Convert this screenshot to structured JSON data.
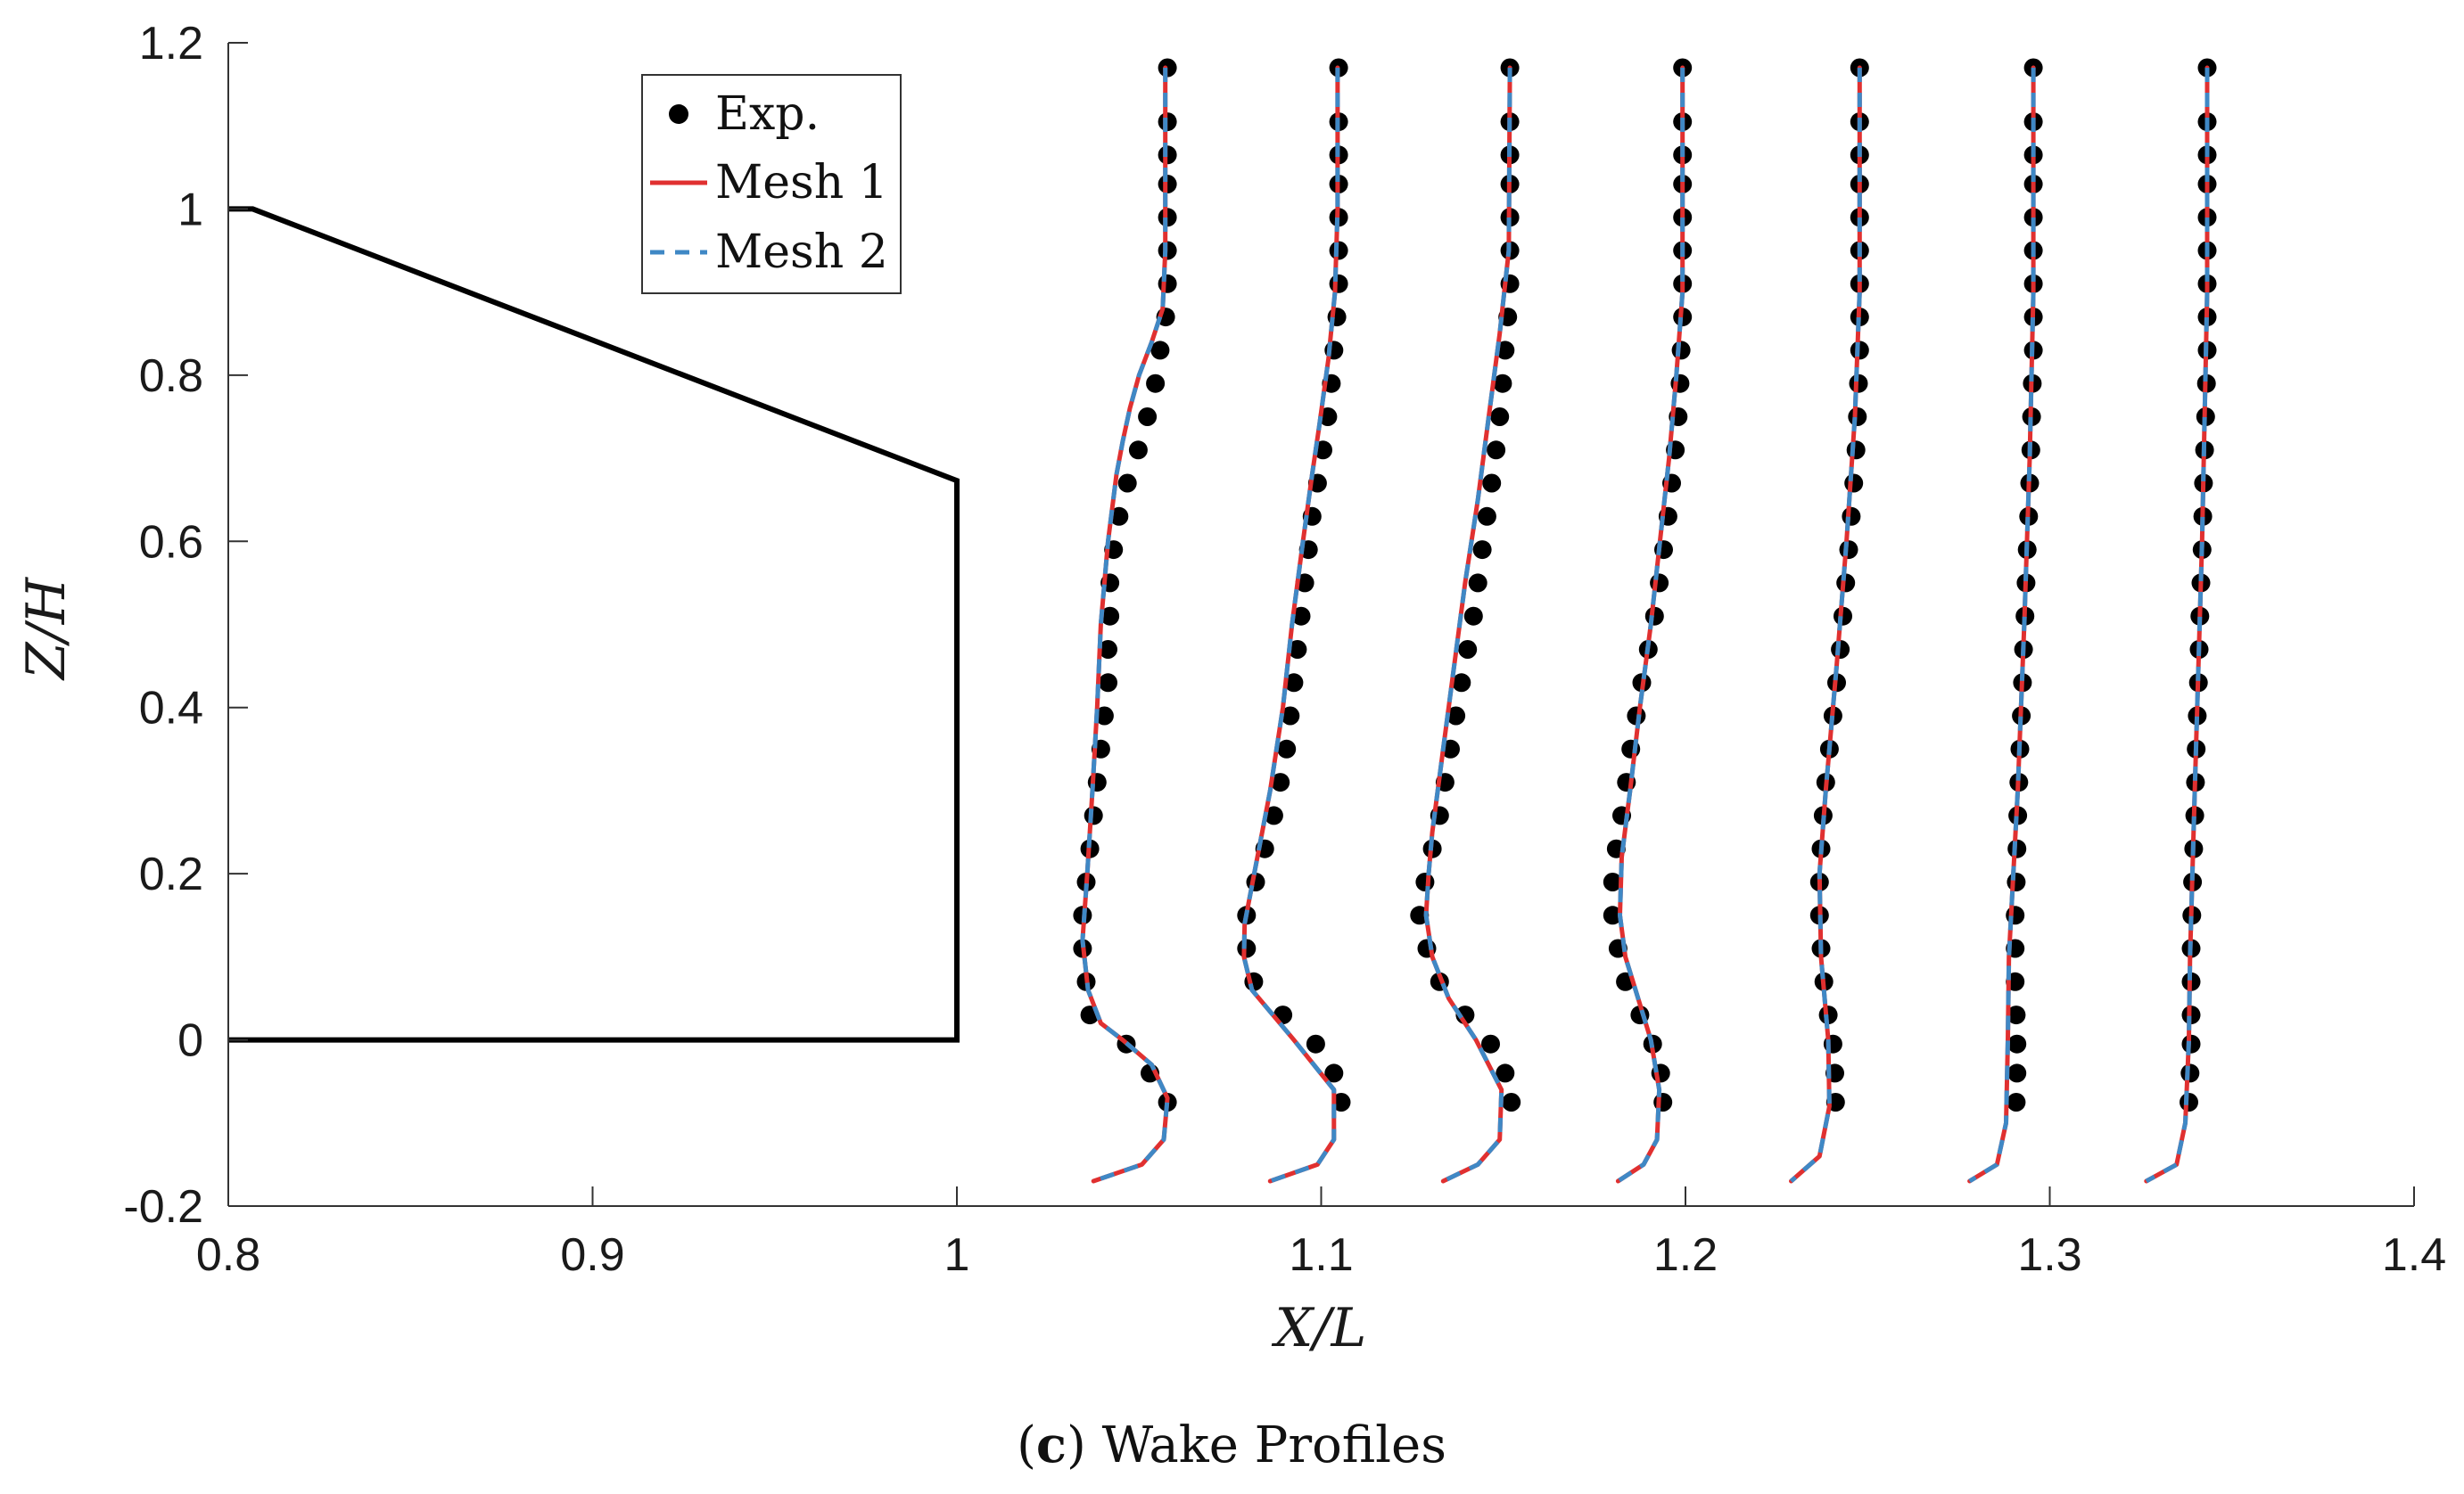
{
  "chart_data": {
    "type": "line",
    "title": "",
    "caption": {
      "prefix": "(",
      "letter": "c",
      "suffix": ") Wake Profiles"
    },
    "xlabel": "X/L",
    "ylabel": "Z/H",
    "xlim": [
      0.8,
      1.4
    ],
    "ylim": [
      -0.2,
      1.2
    ],
    "xticks": [
      0.8,
      0.9,
      1.0,
      1.1,
      1.2,
      1.3,
      1.4
    ],
    "xtick_labels": [
      "0.8",
      "0.9",
      "1",
      "1.1",
      "1.2",
      "1.3",
      "1.4"
    ],
    "yticks": [
      -0.2,
      0,
      0.2,
      0.4,
      0.6,
      0.8,
      1.0,
      1.2
    ],
    "ytick_labels": [
      "-0.2",
      "0",
      "0.2",
      "0.4",
      "0.6",
      "0.8",
      "1",
      "1.2"
    ],
    "grid": false,
    "legend_position": "top-left",
    "legend": [
      {
        "key": "exp",
        "label": "Exp.",
        "style": "marker"
      },
      {
        "key": "mesh1",
        "label": "Mesh 1",
        "style": "solid"
      },
      {
        "key": "mesh2",
        "label": "Mesh 2",
        "style": "dashed"
      }
    ],
    "colors": {
      "exp": "#000000",
      "mesh1": "#e03030",
      "mesh2": "#3f88c5",
      "geometry": "#000000"
    },
    "geometry": {
      "name": "body-outline",
      "x": [
        0.8,
        0.8067,
        1.0,
        1.0,
        0.8
      ],
      "z": [
        1.0,
        1.0,
        0.673,
        0.0,
        0.0
      ]
    },
    "profiles": [
      {
        "station": 1.058,
        "exp_z": [
          1.17,
          1.105,
          1.065,
          1.03,
          0.99,
          0.95,
          0.91,
          0.87,
          0.83,
          0.79,
          0.75,
          0.71,
          0.67,
          0.63,
          0.59,
          0.55,
          0.51,
          0.47,
          0.43,
          0.39,
          0.35,
          0.31,
          0.27,
          0.23,
          0.19,
          0.15,
          0.11,
          0.07,
          0.03,
          -0.005,
          -0.04,
          -0.075
        ],
        "exp_x": [
          1.0578,
          1.0578,
          1.0578,
          1.0578,
          1.0578,
          1.0578,
          1.0578,
          1.0573,
          1.0558,
          1.0545,
          1.0523,
          1.0498,
          1.0468,
          1.0445,
          1.043,
          1.042,
          1.042,
          1.0415,
          1.0415,
          1.0405,
          1.0395,
          1.0385,
          1.0375,
          1.0365,
          1.0355,
          1.0345,
          1.0345,
          1.0355,
          1.0365,
          1.0465,
          1.053,
          1.0578
        ],
        "sim_z": [
          1.17,
          1.05,
          0.95,
          0.88,
          0.84,
          0.8,
          0.76,
          0.72,
          0.68,
          0.6,
          0.5,
          0.4,
          0.3,
          0.2,
          0.12,
          0.06,
          0.02,
          0.0,
          -0.03,
          -0.07,
          -0.12,
          -0.15,
          -0.17
        ],
        "sim_x": [
          1.0572,
          1.0572,
          1.0572,
          1.0565,
          1.0535,
          1.05,
          1.0475,
          1.0455,
          1.0438,
          1.0415,
          1.0395,
          1.0385,
          1.0372,
          1.0358,
          1.0345,
          1.036,
          1.0395,
          1.0455,
          1.0535,
          1.0578,
          1.0568,
          1.0508,
          1.0375
        ]
      },
      {
        "station": 1.105,
        "exp_z": [
          1.17,
          1.105,
          1.065,
          1.03,
          0.99,
          0.95,
          0.91,
          0.87,
          0.83,
          0.79,
          0.75,
          0.71,
          0.67,
          0.63,
          0.59,
          0.55,
          0.51,
          0.47,
          0.43,
          0.39,
          0.35,
          0.31,
          0.27,
          0.23,
          0.19,
          0.15,
          0.11,
          0.07,
          0.03,
          -0.005,
          -0.04,
          -0.075
        ],
        "exp_x": [
          1.1048,
          1.1048,
          1.1048,
          1.1048,
          1.1048,
          1.1048,
          1.1048,
          1.1043,
          1.1035,
          1.1028,
          1.1018,
          1.1005,
          1.099,
          1.0975,
          1.0965,
          1.0955,
          1.0945,
          1.0935,
          1.0925,
          1.0915,
          1.0905,
          1.0888,
          1.087,
          1.0845,
          1.082,
          1.0795,
          1.0795,
          1.0815,
          1.0895,
          1.0985,
          1.1035,
          1.1055
        ],
        "sim_z": [
          1.17,
          1.0,
          0.9,
          0.82,
          0.74,
          0.68,
          0.6,
          0.5,
          0.4,
          0.3,
          0.22,
          0.14,
          0.1,
          0.06,
          0.0,
          -0.06,
          -0.12,
          -0.15,
          -0.17
        ],
        "sim_x": [
          1.1045,
          1.1045,
          1.1038,
          1.102,
          1.0995,
          1.0975,
          1.095,
          1.092,
          1.0895,
          1.086,
          1.0825,
          1.079,
          1.0788,
          1.081,
          1.0925,
          1.1035,
          1.1035,
          1.099,
          1.086
        ]
      },
      {
        "station": 1.152,
        "exp_z": [
          1.17,
          1.105,
          1.065,
          1.03,
          0.99,
          0.95,
          0.91,
          0.87,
          0.83,
          0.79,
          0.75,
          0.71,
          0.67,
          0.63,
          0.59,
          0.55,
          0.51,
          0.47,
          0.43,
          0.39,
          0.35,
          0.31,
          0.27,
          0.23,
          0.19,
          0.15,
          0.11,
          0.07,
          0.03,
          -0.005,
          -0.04,
          -0.075
        ],
        "exp_x": [
          1.1518,
          1.1518,
          1.1518,
          1.1518,
          1.1518,
          1.1518,
          1.1518,
          1.1512,
          1.1505,
          1.1498,
          1.149,
          1.148,
          1.1468,
          1.1455,
          1.1442,
          1.143,
          1.1418,
          1.1402,
          1.1385,
          1.137,
          1.1355,
          1.134,
          1.1325,
          1.1305,
          1.1285,
          1.127,
          1.129,
          1.1325,
          1.1395,
          1.1465,
          1.1505,
          1.1522
        ],
        "sim_z": [
          1.17,
          0.95,
          0.85,
          0.75,
          0.65,
          0.55,
          0.45,
          0.35,
          0.25,
          0.2,
          0.15,
          0.1,
          0.05,
          0.0,
          -0.06,
          -0.12,
          -0.15,
          -0.17
        ],
        "sim_x": [
          1.1518,
          1.1515,
          1.149,
          1.146,
          1.143,
          1.1395,
          1.1365,
          1.1335,
          1.1305,
          1.1295,
          1.1288,
          1.1305,
          1.135,
          1.1425,
          1.1495,
          1.149,
          1.143,
          1.1335
        ]
      },
      {
        "station": 1.199,
        "exp_z": [
          1.17,
          1.105,
          1.065,
          1.03,
          0.99,
          0.95,
          0.91,
          0.87,
          0.83,
          0.79,
          0.75,
          0.71,
          0.67,
          0.63,
          0.59,
          0.55,
          0.51,
          0.47,
          0.43,
          0.39,
          0.35,
          0.31,
          0.27,
          0.23,
          0.19,
          0.15,
          0.11,
          0.07,
          0.03,
          -0.005,
          -0.04,
          -0.075
        ],
        "exp_x": [
          1.1992,
          1.1992,
          1.1992,
          1.1992,
          1.1992,
          1.1992,
          1.1992,
          1.1992,
          1.1988,
          1.1985,
          1.198,
          1.1972,
          1.1962,
          1.1952,
          1.194,
          1.1928,
          1.1915,
          1.1898,
          1.188,
          1.1865,
          1.185,
          1.1838,
          1.1825,
          1.181,
          1.18,
          1.18,
          1.1815,
          1.1835,
          1.1875,
          1.191,
          1.1932,
          1.1938
        ],
        "sim_z": [
          1.17,
          0.9,
          0.8,
          0.7,
          0.6,
          0.5,
          0.4,
          0.3,
          0.22,
          0.15,
          0.1,
          0.05,
          0.0,
          -0.06,
          -0.12,
          -0.15,
          -0.17
        ],
        "sim_x": [
          1.1992,
          1.1992,
          1.1975,
          1.1955,
          1.193,
          1.1905,
          1.1875,
          1.1848,
          1.1825,
          1.182,
          1.1835,
          1.187,
          1.1905,
          1.1928,
          1.1922,
          1.1885,
          1.1815
        ]
      },
      {
        "station": 1.247,
        "exp_z": [
          1.17,
          1.105,
          1.065,
          1.03,
          0.99,
          0.95,
          0.91,
          0.87,
          0.83,
          0.79,
          0.75,
          0.71,
          0.67,
          0.63,
          0.59,
          0.55,
          0.51,
          0.47,
          0.43,
          0.39,
          0.35,
          0.31,
          0.27,
          0.23,
          0.19,
          0.15,
          0.11,
          0.07,
          0.03,
          -0.005,
          -0.04,
          -0.075
        ],
        "exp_x": [
          1.2478,
          1.2478,
          1.2478,
          1.2478,
          1.2478,
          1.2478,
          1.2478,
          1.2478,
          1.2478,
          1.2475,
          1.2472,
          1.2468,
          1.2462,
          1.2455,
          1.2448,
          1.244,
          1.2432,
          1.2425,
          1.2415,
          1.2405,
          1.2395,
          1.2385,
          1.2378,
          1.2372,
          1.2368,
          1.2368,
          1.2372,
          1.238,
          1.2392,
          1.2405,
          1.241,
          1.2412
        ],
        "sim_z": [
          1.17,
          0.9,
          0.75,
          0.6,
          0.45,
          0.3,
          0.2,
          0.1,
          0.0,
          -0.08,
          -0.14,
          -0.17
        ],
        "sim_x": [
          1.2478,
          1.2478,
          1.2465,
          1.2442,
          1.2415,
          1.2385,
          1.2368,
          1.2372,
          1.2392,
          1.2395,
          1.2368,
          1.229
        ]
      },
      {
        "station": 1.295,
        "exp_z": [
          1.17,
          1.105,
          1.065,
          1.03,
          0.99,
          0.95,
          0.91,
          0.87,
          0.83,
          0.79,
          0.75,
          0.71,
          0.67,
          0.63,
          0.59,
          0.55,
          0.51,
          0.47,
          0.43,
          0.39,
          0.35,
          0.31,
          0.27,
          0.23,
          0.19,
          0.15,
          0.11,
          0.07,
          0.03,
          -0.005,
          -0.04,
          -0.075
        ],
        "exp_x": [
          1.2955,
          1.2955,
          1.2955,
          1.2955,
          1.2955,
          1.2955,
          1.2955,
          1.2955,
          1.2955,
          1.2952,
          1.295,
          1.2948,
          1.2945,
          1.2942,
          1.2938,
          1.2935,
          1.2932,
          1.2928,
          1.2925,
          1.2922,
          1.2918,
          1.2915,
          1.2912,
          1.291,
          1.2908,
          1.2905,
          1.2905,
          1.2905,
          1.2908,
          1.291,
          1.291,
          1.2908
        ],
        "sim_z": [
          1.17,
          0.9,
          0.7,
          0.5,
          0.3,
          0.1,
          0.0,
          -0.1,
          -0.15,
          -0.17
        ],
        "sim_x": [
          1.2955,
          1.2955,
          1.2945,
          1.293,
          1.2912,
          1.2888,
          1.2885,
          1.288,
          1.2855,
          1.278
        ]
      },
      {
        "station": 1.343,
        "exp_z": [
          1.17,
          1.105,
          1.065,
          1.03,
          0.99,
          0.95,
          0.91,
          0.87,
          0.83,
          0.79,
          0.75,
          0.71,
          0.67,
          0.63,
          0.59,
          0.55,
          0.51,
          0.47,
          0.43,
          0.39,
          0.35,
          0.31,
          0.27,
          0.23,
          0.19,
          0.15,
          0.11,
          0.07,
          0.03,
          -0.005,
          -0.04,
          -0.075
        ],
        "exp_x": [
          1.3432,
          1.3432,
          1.3432,
          1.3432,
          1.3432,
          1.3432,
          1.3432,
          1.3432,
          1.3432,
          1.343,
          1.3428,
          1.3425,
          1.3422,
          1.342,
          1.3418,
          1.3415,
          1.3412,
          1.341,
          1.3408,
          1.3405,
          1.3402,
          1.34,
          1.3398,
          1.3395,
          1.3392,
          1.339,
          1.3388,
          1.3388,
          1.3388,
          1.3388,
          1.3385,
          1.3382
        ],
        "sim_z": [
          1.17,
          0.9,
          0.6,
          0.3,
          0.1,
          0.0,
          -0.1,
          -0.15,
          -0.17
        ],
        "sim_x": [
          1.3432,
          1.3432,
          1.3418,
          1.3398,
          1.3385,
          1.3382,
          1.3372,
          1.3348,
          1.3265
        ]
      }
    ]
  }
}
